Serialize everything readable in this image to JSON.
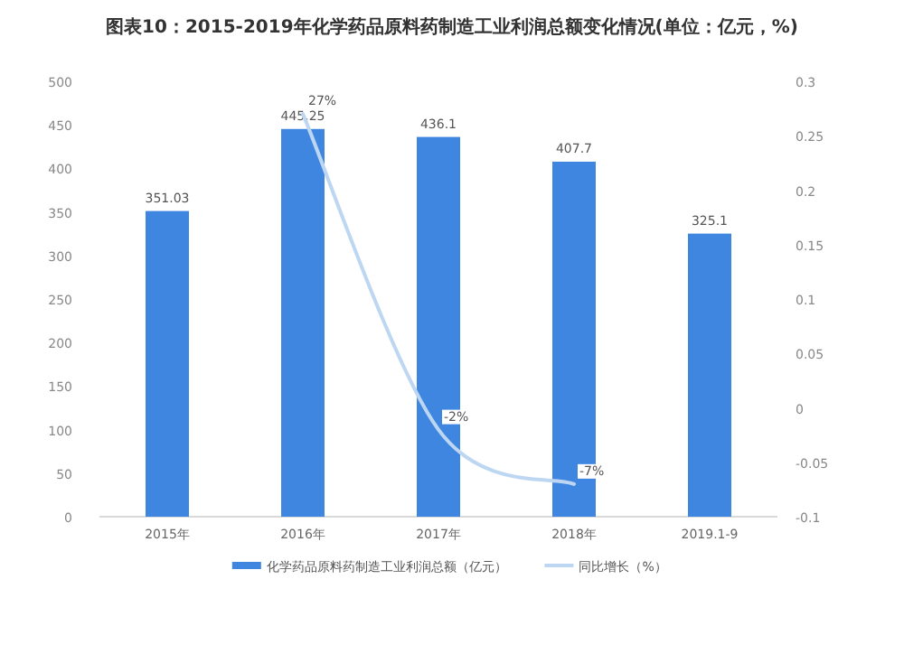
{
  "chart_data": {
    "type": "bar",
    "title": "图表10：2015-2019年化学药品原料药制造工业利润总额变化情况(单位：亿元，%)",
    "categories": [
      "2015年",
      "2016年",
      "2017年",
      "2018年",
      "2019.1-9"
    ],
    "series": [
      {
        "name": "化学药品原料药制造工业利润总额（亿元）",
        "color": "#3f86e0",
        "values": [
          351.03,
          445.25,
          436.1,
          407.7,
          325.1
        ],
        "value_labels": [
          "351.03",
          "445.25",
          "436.1",
          "407.7",
          "325.1"
        ]
      },
      {
        "name": "同比增长（%）",
        "type": "line",
        "axis": "y2",
        "color": "#bdd7f2",
        "values": [
          null,
          0.27,
          -0.02,
          -0.07,
          null
        ],
        "value_labels": [
          null,
          "27%",
          "-2%",
          "-7%",
          null
        ]
      }
    ],
    "ylim": [
      0,
      500
    ],
    "yticks": [
      0,
      50,
      100,
      150,
      200,
      250,
      300,
      350,
      400,
      450,
      500
    ],
    "y2lim": [
      -0.1,
      0.3
    ],
    "y2ticks": [
      -0.1,
      -0.05,
      0,
      0.05,
      0.1,
      0.15,
      0.2,
      0.25,
      0.3
    ],
    "grid": false,
    "legend": "bottom",
    "marker": "none",
    "line_style": "solid"
  }
}
